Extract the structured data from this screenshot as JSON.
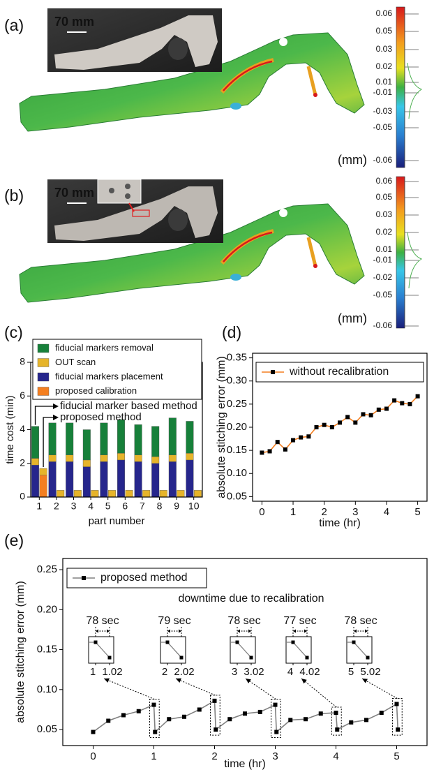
{
  "panel_labels": [
    "(a)",
    "(b)",
    "(c)",
    "(d)",
    "(e)"
  ],
  "scans": [
    {
      "scale_bar": "70 mm",
      "unit": "(mm)",
      "colorbar_labels": [
        "0.06",
        "0.05",
        "0.03",
        "0.02",
        "0.01",
        "-0.01",
        "-0.03",
        "-0.05",
        "-0.06"
      ]
    },
    {
      "scale_bar": "70 mm",
      "unit": "(mm)",
      "colorbar_labels": [
        "0.06",
        "0.05",
        "0.03",
        "0.02",
        "0.01",
        "-0.01",
        "-0.02",
        "-0.05",
        "-0.06"
      ]
    }
  ],
  "chart_data": [
    {
      "type": "stacked_bar",
      "xlabel": "part number",
      "ylabel": "time cost (min)",
      "categories": [
        "1",
        "2",
        "3",
        "4",
        "5",
        "6",
        "7",
        "8",
        "9",
        "10"
      ],
      "bar_labels": [
        "fiducial marker based method",
        "proposed method"
      ],
      "series": [
        {
          "name": "fiducial markers removal",
          "color": "#17803a",
          "values": [
            [
              1.9,
              null
            ],
            [
              1.9,
              null
            ],
            [
              1.9,
              null
            ],
            [
              1.8,
              null
            ],
            [
              1.9,
              null
            ],
            [
              2.0,
              null
            ],
            [
              1.8,
              null
            ],
            [
              1.8,
              null
            ],
            [
              2.2,
              null
            ],
            [
              1.9,
              null
            ]
          ]
        },
        {
          "name": "OUT scan",
          "color": "#e6b42a",
          "values": [
            [
              0.4,
              0.4
            ],
            [
              0.4,
              0.4
            ],
            [
              0.4,
              0.4
            ],
            [
              0.4,
              0.4
            ],
            [
              0.4,
              0.4
            ],
            [
              0.4,
              0.4
            ],
            [
              0.4,
              0.4
            ],
            [
              0.4,
              0.4
            ],
            [
              0.4,
              0.4
            ],
            [
              0.4,
              0.4
            ]
          ]
        },
        {
          "name": "fiducial markers placement",
          "color": "#26268c",
          "values": [
            [
              1.9,
              null
            ],
            [
              2.1,
              null
            ],
            [
              2.1,
              null
            ],
            [
              1.8,
              null
            ],
            [
              2.1,
              null
            ],
            [
              2.2,
              null
            ],
            [
              2.1,
              null
            ],
            [
              2.0,
              null
            ],
            [
              2.1,
              null
            ],
            [
              2.2,
              null
            ]
          ]
        },
        {
          "name": "proposed calibration",
          "color": "#f47f20",
          "values": [
            [
              null,
              1.3
            ],
            [
              null,
              null
            ],
            [
              null,
              null
            ],
            [
              null,
              null
            ],
            [
              null,
              null
            ],
            [
              null,
              null
            ],
            [
              null,
              null
            ],
            [
              null,
              null
            ],
            [
              null,
              null
            ],
            [
              null,
              null
            ]
          ]
        }
      ],
      "ylim": [
        0,
        8
      ],
      "yticks": [
        0,
        2,
        4,
        6,
        8
      ]
    },
    {
      "type": "line",
      "xlabel": "time (hr)",
      "ylabel": "absolute stitching error (mm)",
      "x": [
        0,
        0.25,
        0.5,
        0.75,
        1,
        1.25,
        1.5,
        1.75,
        2,
        2.25,
        2.5,
        2.75,
        3,
        3.25,
        3.5,
        3.75,
        4,
        4.25,
        4.5,
        4.75,
        5
      ],
      "series": [
        {
          "name": "without recalibration",
          "color": "#f47f20",
          "marker_color": "#000000",
          "values": [
            0.145,
            0.148,
            0.168,
            0.152,
            0.172,
            0.178,
            0.18,
            0.2,
            0.205,
            0.2,
            0.21,
            0.222,
            0.21,
            0.228,
            0.226,
            0.238,
            0.24,
            0.258,
            0.252,
            0.25,
            0.267
          ]
        }
      ],
      "xlim": [
        -0.3,
        5.3
      ],
      "ylim": [
        0.04,
        0.36
      ],
      "xticks": [
        0,
        1,
        2,
        3,
        4,
        5
      ],
      "yticks": [
        0.05,
        {
          "value": 0.1,
          "label": "0.10"
        },
        0.15,
        {
          "value": 0.2,
          "label": "0.20"
        },
        0.25,
        {
          "value": 0.3,
          "label": "0.30"
        },
        0.35
      ]
    },
    {
      "type": "line",
      "xlabel": "time (hr)",
      "ylabel": "absolute stitching error (mm)",
      "annotation": "downtime due to recalibration",
      "x": [
        0,
        0.25,
        0.5,
        0.75,
        1,
        1.02,
        1.25,
        1.5,
        1.75,
        2,
        2.02,
        2.25,
        2.5,
        2.75,
        3,
        3.02,
        3.25,
        3.5,
        3.75,
        4,
        4.02,
        4.25,
        4.5,
        4.75,
        5,
        5.02
      ],
      "series": [
        {
          "name": "proposed method",
          "color": "#808080",
          "marker_color": "#000000",
          "values": [
            0.047,
            0.061,
            0.068,
            0.073,
            0.081,
            0.047,
            0.063,
            0.066,
            0.075,
            0.086,
            0.05,
            0.063,
            0.07,
            0.072,
            0.081,
            0.047,
            0.062,
            0.063,
            0.07,
            0.071,
            0.05,
            0.059,
            0.062,
            0.071,
            0.082,
            0.05
          ]
        }
      ],
      "insets": [
        {
          "label": "78 sec",
          "ticks": [
            1,
            1.02
          ]
        },
        {
          "label": "79 sec",
          "ticks": [
            2,
            2.02
          ]
        },
        {
          "label": "78 sec",
          "ticks": [
            3,
            3.02
          ]
        },
        {
          "label": "77 sec",
          "ticks": [
            4,
            4.02
          ]
        },
        {
          "label": "78 sec",
          "ticks": [
            5,
            5.02
          ]
        }
      ],
      "xlim": [
        -0.5,
        5.5
      ],
      "ylim": [
        0.03,
        0.264
      ],
      "xticks": [
        0,
        1,
        2,
        3,
        4,
        5
      ],
      "yticks": [
        0.05,
        {
          "value": 0.1,
          "label": "0.10"
        },
        0.15,
        {
          "value": 0.2,
          "label": "0.20"
        },
        0.25
      ]
    }
  ]
}
